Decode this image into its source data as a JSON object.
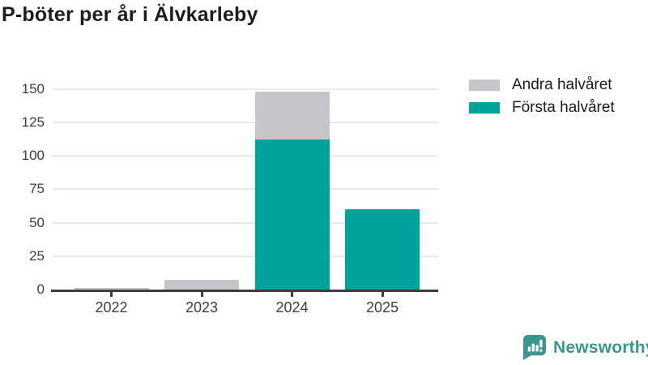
{
  "title": "P-böter per år i Älvkarleby",
  "legend": {
    "items": [
      {
        "label": "Andra halvåret",
        "color": "#c7c5cb"
      },
      {
        "label": "Första halvåret",
        "color": "#00a399"
      }
    ]
  },
  "branding": {
    "name": "Newsworthy",
    "color": "#3b968f",
    "icon": "bar-chart-speech-bubble-icon"
  },
  "chart_data": {
    "type": "bar",
    "stacked": true,
    "title": "P-böter per år i Älvkarleby",
    "categories": [
      "2022",
      "2023",
      "2024",
      "2025"
    ],
    "series": [
      {
        "name": "Första halvåret",
        "color": "#00a399",
        "values": [
          0,
          0,
          112,
          60
        ]
      },
      {
        "name": "Andra halvåret",
        "color": "#c7c5cb",
        "values": [
          1,
          7,
          36,
          0
        ]
      }
    ],
    "totals": [
      1,
      7,
      148,
      60
    ],
    "xlabel": "",
    "ylabel": "",
    "ylim": [
      0,
      150
    ],
    "y_ticks": [
      0,
      25,
      50,
      75,
      100,
      125,
      150
    ],
    "grid": true,
    "legend_position": "top-right"
  }
}
